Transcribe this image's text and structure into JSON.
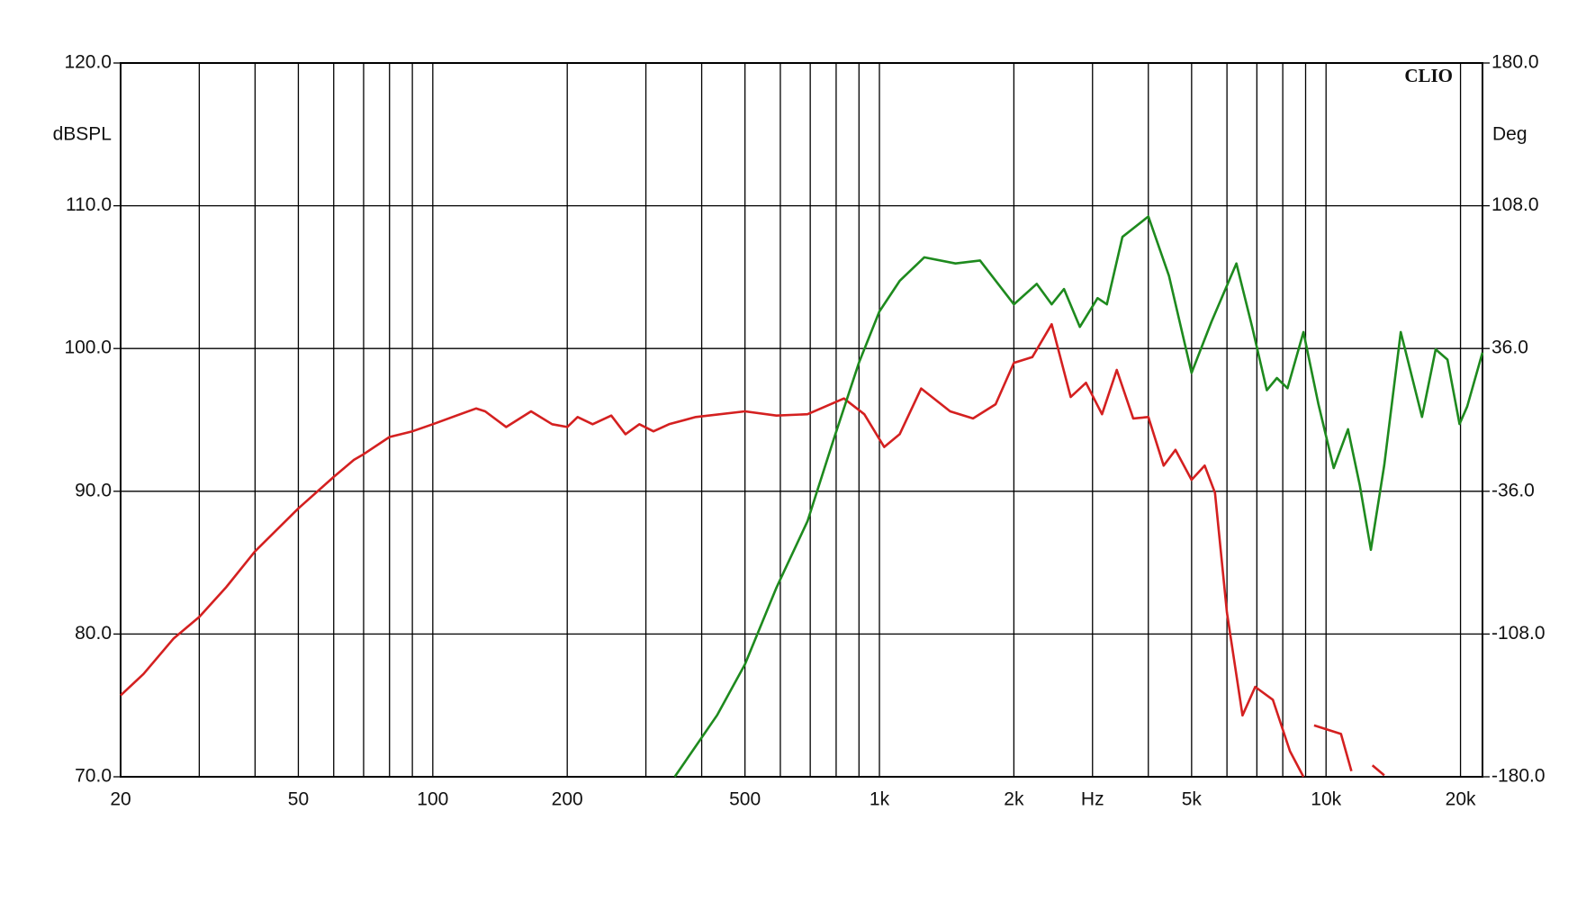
{
  "chart_data": {
    "type": "line",
    "watermark": "CLIO",
    "ylabel": "dBSPL",
    "y2label": "Deg",
    "xscale": "log",
    "xlim": [
      20,
      22400
    ],
    "xticks": [
      20,
      50,
      100,
      200,
      500,
      {
        "value": 1000,
        "label": "1k"
      },
      {
        "value": 2000,
        "label": "2k"
      },
      {
        "value": 3000,
        "label": "Hz"
      },
      {
        "value": 5000,
        "label": "5k"
      },
      {
        "value": 10000,
        "label": "10k"
      },
      {
        "value": 20000,
        "label": "20k"
      }
    ],
    "x_minor_ticks": [
      30,
      40,
      60,
      70,
      80,
      90,
      300,
      400,
      600,
      700,
      800,
      900,
      4000,
      6000,
      7000,
      8000,
      9000
    ],
    "ylim": [
      70,
      120
    ],
    "yticks": [
      {
        "value": 70,
        "label": "70.0"
      },
      {
        "value": 80,
        "label": "80.0"
      },
      {
        "value": 90,
        "label": "90.0"
      },
      {
        "value": 100,
        "label": "100.0"
      },
      {
        "value": 110,
        "label": "110.0"
      },
      {
        "value": 120,
        "label": "120.0"
      }
    ],
    "y2lim": [
      -180,
      180
    ],
    "y2ticks": [
      {
        "value": -180,
        "label": "-180.0"
      },
      {
        "value": -108,
        "label": "-108.0"
      },
      {
        "value": -36,
        "label": "-36.0"
      },
      {
        "value": 36,
        "label": "36.0"
      },
      {
        "value": 108,
        "label": "108.0"
      },
      {
        "value": 180,
        "label": "180.0"
      }
    ],
    "grid": true,
    "series": [
      {
        "color": "#d42020",
        "axis": "y",
        "x": [
          20,
          22.5,
          26.3,
          30,
          34.5,
          40,
          50,
          60,
          66.6,
          70,
          80,
          90,
          100,
          125,
          131,
          146,
          166,
          185,
          200,
          211,
          228,
          251,
          270,
          290,
          312,
          338,
          388,
          500,
          588,
          690,
          833,
          925,
          1025,
          1110,
          1240,
          1440,
          1620,
          1820,
          2000,
          2200,
          2430,
          2680,
          2900,
          3150,
          3400,
          3700,
          4000,
          4330,
          4600,
          5000,
          5350,
          5640,
          6000,
          6500,
          6940,
          7600,
          8300,
          8900,
          9200,
          9400,
          10800,
          11400,
          11700,
          12700,
          13500
        ],
        "values": [
          75.7,
          77.2,
          79.7,
          81.2,
          83.3,
          85.8,
          88.8,
          91.0,
          92.2,
          92.6,
          93.8,
          94.2,
          94.7,
          95.8,
          95.6,
          94.5,
          95.6,
          94.7,
          94.5,
          95.2,
          94.7,
          95.3,
          94.0,
          94.7,
          94.2,
          94.7,
          95.2,
          95.6,
          95.3,
          95.4,
          96.5,
          95.4,
          93.1,
          94.0,
          97.2,
          95.6,
          95.1,
          96.1,
          99.0,
          99.4,
          101.7,
          96.6,
          97.6,
          95.4,
          98.5,
          95.1,
          95.2,
          91.8,
          92.9,
          90.8,
          91.8,
          89.9,
          81.5,
          74.3,
          76.3,
          75.4,
          71.8,
          70.0,
          null,
          73.6,
          73.0,
          70.4,
          null,
          70.8,
          70.1
        ]
      },
      {
        "color": "#1e8a1e",
        "axis": "y2",
        "x": [
          348,
          433,
          500,
          588,
          690,
          790,
          900,
          1000,
          1110,
          1260,
          1480,
          1680,
          2000,
          2250,
          2430,
          2590,
          2810,
          3080,
          3230,
          3500,
          4000,
          4450,
          5000,
          5540,
          6300,
          6830,
          7370,
          7760,
          8200,
          8900,
          9610,
          10400,
          11200,
          11900,
          12600,
          13500,
          14700,
          16400,
          17600,
          18700,
          19900,
          20700,
          22400
        ],
        "values": [
          -180,
          -149,
          -123.3,
          -84.6,
          -51.1,
          -9.8,
          28.9,
          54.7,
          70.1,
          82.0,
          78.9,
          80.4,
          58.3,
          68.6,
          58.3,
          66.0,
          46.9,
          61.4,
          58.3,
          92.3,
          102.6,
          72.7,
          23.7,
          49.5,
          78.9,
          46.9,
          15.0,
          21.1,
          16.0,
          44.3,
          8.2,
          -24.3,
          -4.7,
          -33.0,
          -65.5,
          -22.7,
          44.3,
          1.5,
          35.6,
          30.4,
          -2.1,
          6.7,
          34.0
        ]
      }
    ]
  }
}
